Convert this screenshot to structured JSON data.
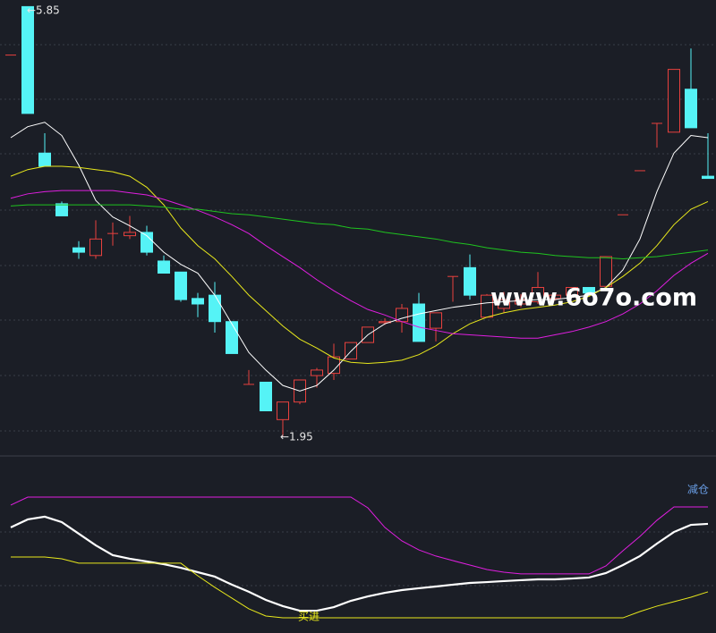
{
  "chart_data": [
    {
      "type": "candlestick",
      "open": [
        5.41,
        5.85,
        4.52,
        4.06,
        3.66,
        3.59,
        3.79,
        3.77,
        3.8,
        3.54,
        3.44,
        3.2,
        3.23,
        2.99,
        2.42,
        2.44,
        2.1,
        2.26,
        2.5,
        2.52,
        2.65,
        2.8,
        2.98,
        2.99,
        3.15,
        2.93,
        3.4,
        3.48,
        3.03,
        3.11,
        3.15,
        3.17,
        3.2,
        3.23,
        3.3,
        3.31,
        3.96,
        4.36,
        4.79,
        4.71,
        5.1,
        4.31
      ],
      "high": [
        5.41,
        5.85,
        4.7,
        4.08,
        3.72,
        3.91,
        3.89,
        3.95,
        3.86,
        3.59,
        3.44,
        3.25,
        3.35,
        2.99,
        2.55,
        2.44,
        2.26,
        2.46,
        2.57,
        2.79,
        2.8,
        2.94,
        3.02,
        3.15,
        3.25,
        3.07,
        3.4,
        3.6,
        3.24,
        3.26,
        3.24,
        3.44,
        3.25,
        3.3,
        3.3,
        3.58,
        3.96,
        4.36,
        4.79,
        5.28,
        5.47,
        4.7
      ],
      "low": [
        5.41,
        4.88,
        4.4,
        3.95,
        3.56,
        3.56,
        3.68,
        3.74,
        3.59,
        3.43,
        3.17,
        3.03,
        2.89,
        2.7,
        2.42,
        2.18,
        1.95,
        2.24,
        2.39,
        2.46,
        2.65,
        2.8,
        2.96,
        2.89,
        2.81,
        2.81,
        3.17,
        3.19,
        3.03,
        3.07,
        3.12,
        3.15,
        3.18,
        3.23,
        3.25,
        3.31,
        3.96,
        4.36,
        4.57,
        4.71,
        4.75,
        4.29
      ],
      "close": [
        5.41,
        4.88,
        4.4,
        3.95,
        3.62,
        3.74,
        3.79,
        3.8,
        3.62,
        3.43,
        3.19,
        3.15,
        2.99,
        2.7,
        2.42,
        2.18,
        2.26,
        2.46,
        2.55,
        2.67,
        2.8,
        2.94,
        2.99,
        3.11,
        2.81,
        3.07,
        3.4,
        3.23,
        3.23,
        3.19,
        3.19,
        3.3,
        3.23,
        3.3,
        3.25,
        3.58,
        3.96,
        4.36,
        4.79,
        5.28,
        4.75,
        4.29
      ],
      "up_color": "#e8413e",
      "down_color": "#55f3f6",
      "series": [
        {
          "color": "#ffffff",
          "values": [
            4.66,
            4.76,
            4.8,
            4.68,
            4.41,
            4.09,
            3.94,
            3.86,
            3.77,
            3.62,
            3.51,
            3.43,
            3.23,
            2.97,
            2.71,
            2.55,
            2.41,
            2.36,
            2.41,
            2.55,
            2.72,
            2.87,
            2.97,
            3.02,
            3.06,
            3.09,
            3.12,
            3.14,
            3.16,
            3.17,
            3.18,
            3.19,
            3.19,
            3.21,
            3.23,
            3.3,
            3.46,
            3.74,
            4.17,
            4.52,
            4.68,
            4.66
          ]
        },
        {
          "color": "#e8e81c",
          "values": [
            4.31,
            4.37,
            4.4,
            4.4,
            4.39,
            4.37,
            4.35,
            4.31,
            4.21,
            4.05,
            3.84,
            3.68,
            3.56,
            3.4,
            3.23,
            3.09,
            2.95,
            2.83,
            2.75,
            2.66,
            2.62,
            2.61,
            2.62,
            2.64,
            2.69,
            2.77,
            2.88,
            2.97,
            3.03,
            3.07,
            3.1,
            3.12,
            3.14,
            3.17,
            3.22,
            3.3,
            3.4,
            3.52,
            3.68,
            3.87,
            4.01,
            4.08
          ]
        },
        {
          "color": "#e01ee0",
          "values": [
            4.11,
            4.15,
            4.17,
            4.18,
            4.18,
            4.18,
            4.18,
            4.16,
            4.14,
            4.1,
            4.05,
            4.0,
            3.94,
            3.87,
            3.79,
            3.68,
            3.58,
            3.48,
            3.37,
            3.27,
            3.18,
            3.1,
            3.05,
            2.99,
            2.94,
            2.91,
            2.88,
            2.87,
            2.86,
            2.85,
            2.84,
            2.84,
            2.87,
            2.9,
            2.94,
            2.99,
            3.06,
            3.15,
            3.27,
            3.41,
            3.52,
            3.61
          ]
        },
        {
          "color": "#1fc41f",
          "values": [
            4.04,
            4.05,
            4.05,
            4.05,
            4.05,
            4.05,
            4.05,
            4.05,
            4.04,
            4.03,
            4.01,
            4.01,
            3.99,
            3.97,
            3.96,
            3.94,
            3.92,
            3.9,
            3.88,
            3.87,
            3.84,
            3.83,
            3.8,
            3.78,
            3.76,
            3.74,
            3.71,
            3.69,
            3.66,
            3.64,
            3.62,
            3.61,
            3.59,
            3.58,
            3.57,
            3.57,
            3.56,
            3.57,
            3.58,
            3.6,
            3.62,
            3.64
          ]
        }
      ],
      "ylim": [
        1.77,
        5.91
      ],
      "annotations": [
        {
          "text": "←5.85"
        },
        {
          "text": "←1.95"
        }
      ],
      "watermark": "www.6o7o.com"
    },
    {
      "type": "line",
      "series": [
        {
          "color": "#e01ee0",
          "values": [
            84.4,
            90,
            90,
            90,
            90,
            90,
            90,
            90,
            90,
            90,
            90,
            90,
            90,
            90,
            90,
            90,
            90,
            90,
            90,
            90,
            90,
            82.5,
            68.8,
            59.4,
            53.1,
            48.8,
            45.6,
            42.5,
            39.4,
            37.5,
            36.3,
            36.3,
            36.3,
            36.3,
            36.3,
            41.9,
            52.5,
            62.5,
            73.8,
            83.1,
            83.1,
            83.1
          ]
        },
        {
          "color": "#ffffff",
          "values": [
            68.8,
            74.4,
            76.3,
            72.5,
            64.4,
            56.3,
            49.4,
            46.9,
            45,
            43.1,
            40.6,
            37.5,
            34.4,
            28.8,
            23.8,
            18.1,
            13.8,
            10.6,
            10.6,
            13.1,
            17.5,
            20.6,
            23.1,
            25,
            26.3,
            27.5,
            28.8,
            30,
            30.6,
            31.3,
            31.9,
            32.5,
            32.5,
            33.1,
            33.8,
            36.9,
            42.5,
            48.8,
            57.5,
            65.6,
            70.6,
            71.3
          ]
        },
        {
          "color": "#e8e81c",
          "values": [
            48.1,
            48.1,
            48.1,
            46.9,
            43.8,
            43.8,
            43.8,
            43.8,
            43.8,
            43.8,
            43.8,
            35,
            26.9,
            19.4,
            11.9,
            6.9,
            5.6,
            5.6,
            5.6,
            5.6,
            5.6,
            5.6,
            5.6,
            5.6,
            5.6,
            5.6,
            5.6,
            5.6,
            5.6,
            5.6,
            5.6,
            5.6,
            5.6,
            5.6,
            5.6,
            5.6,
            5.6,
            10,
            13.8,
            16.9,
            20,
            23.8
          ]
        }
      ],
      "ylim": [
        -5,
        112.5
      ],
      "annotations": [
        {
          "text": "减仓"
        },
        {
          "text": "买进"
        }
      ]
    }
  ]
}
